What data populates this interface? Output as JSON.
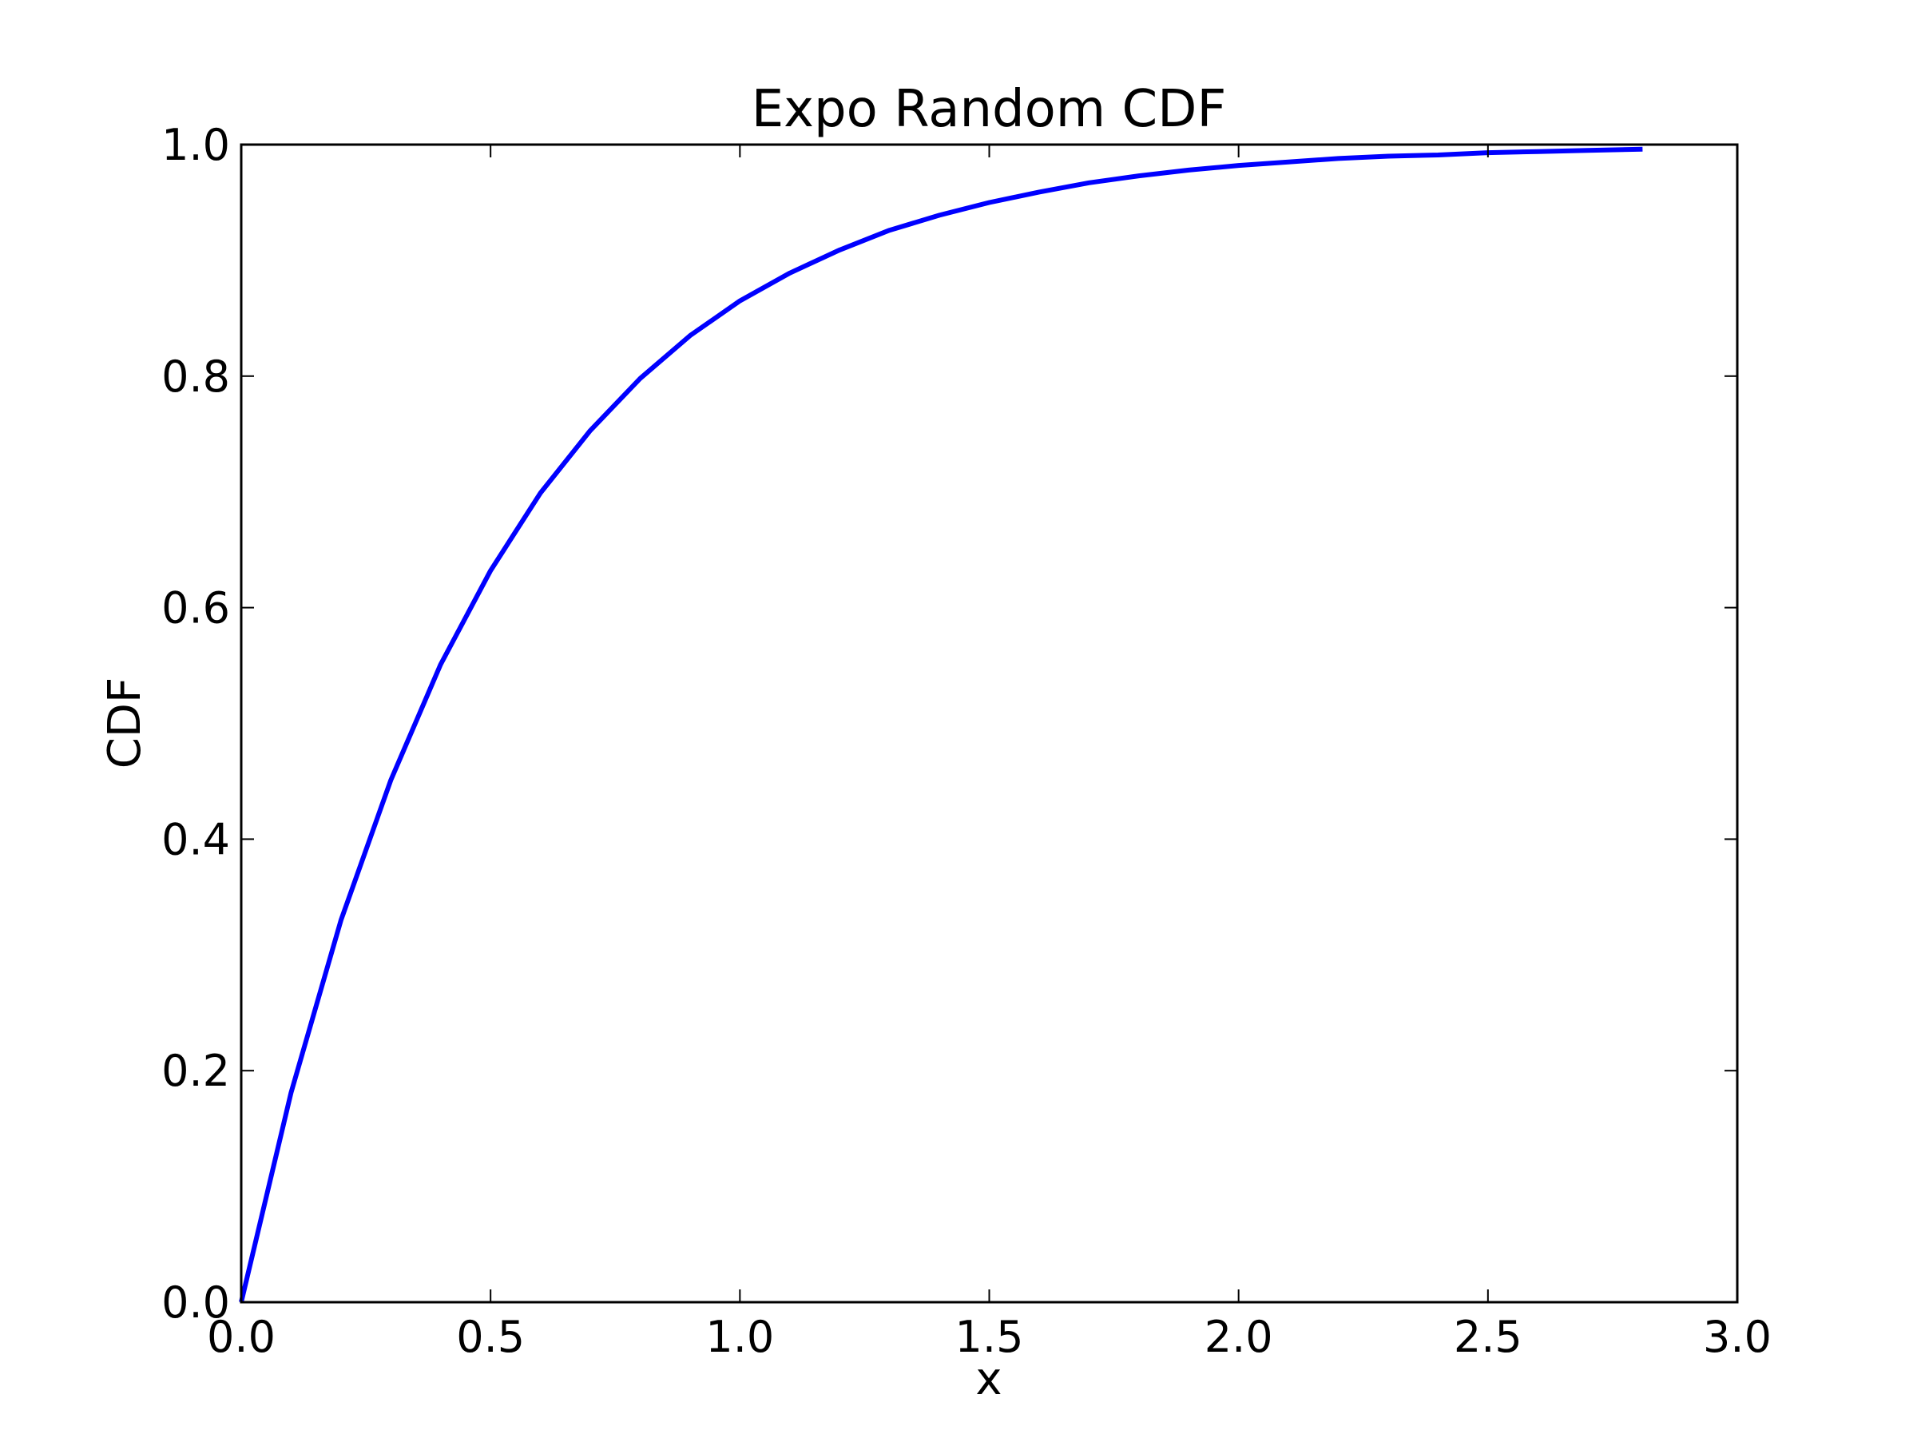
{
  "chart_data": {
    "type": "line",
    "title": "Expo Random CDF",
    "xlabel": "x",
    "ylabel": "CDF",
    "xlim": [
      0.0,
      3.0
    ],
    "ylim": [
      0.0,
      1.0
    ],
    "xticks": [
      "0.0",
      "0.5",
      "1.0",
      "1.5",
      "2.0",
      "2.5",
      "3.0"
    ],
    "yticks": [
      "0.0",
      "0.2",
      "0.4",
      "0.6",
      "0.8",
      "1.0"
    ],
    "grid": false,
    "legend": "none",
    "series": [
      {
        "color": "#0000ff",
        "x": [
          0.0,
          0.1,
          0.2,
          0.3,
          0.4,
          0.5,
          0.6,
          0.7,
          0.8,
          0.9,
          1.0,
          1.1,
          1.2,
          1.3,
          1.4,
          1.5,
          1.6,
          1.7,
          1.8,
          1.9,
          2.0,
          2.1,
          2.2,
          2.3,
          2.4,
          2.5,
          2.6,
          2.7,
          2.81
        ],
        "y": [
          0.0,
          0.181,
          0.33,
          0.451,
          0.551,
          0.632,
          0.699,
          0.753,
          0.798,
          0.835,
          0.865,
          0.889,
          0.909,
          0.926,
          0.939,
          0.95,
          0.959,
          0.967,
          0.973,
          0.978,
          0.982,
          0.985,
          0.988,
          0.99,
          0.991,
          0.993,
          0.994,
          0.995,
          0.996
        ]
      }
    ]
  }
}
